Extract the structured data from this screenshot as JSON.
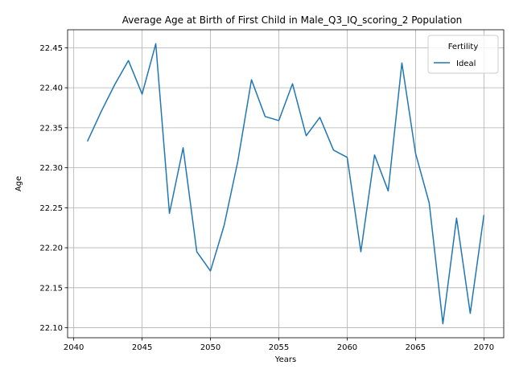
{
  "chart_data": {
    "type": "line",
    "title": "Average Age at Birth of First Child in Male_Q3_IQ_scoring_2 Population",
    "xlabel": "Years",
    "ylabel": "Age",
    "xlim": [
      2039.55,
      2071.45
    ],
    "ylim": [
      22.0875,
      22.4725
    ],
    "xticks": [
      2040,
      2045,
      2050,
      2055,
      2060,
      2065,
      2070
    ],
    "yticks": [
      22.1,
      22.15,
      22.2,
      22.25,
      22.3,
      22.35,
      22.4,
      22.45
    ],
    "ytick_labels": [
      "22.10",
      "22.15",
      "22.20",
      "22.25",
      "22.30",
      "22.35",
      "22.40",
      "22.45"
    ],
    "grid": true,
    "legend": {
      "title": "Fertility",
      "placement": "top-right"
    },
    "series": [
      {
        "name": "Ideal",
        "color": "#1f77b4",
        "x": [
          2041,
          2042,
          2043,
          2044,
          2045,
          2046,
          2047,
          2048,
          2049,
          2050,
          2051,
          2052,
          2053,
          2054,
          2055,
          2056,
          2057,
          2058,
          2059,
          2060,
          2061,
          2062,
          2063,
          2064,
          2065,
          2066,
          2067,
          2068,
          2069,
          2070
        ],
        "values": [
          22.333,
          22.37,
          22.404,
          22.434,
          22.392,
          22.455,
          22.243,
          22.325,
          22.195,
          22.171,
          22.228,
          22.308,
          22.41,
          22.364,
          22.359,
          22.405,
          22.34,
          22.363,
          22.322,
          22.313,
          22.195,
          22.316,
          22.271,
          22.431,
          22.318,
          22.256,
          22.105,
          22.237,
          22.118,
          22.241
        ]
      }
    ]
  }
}
